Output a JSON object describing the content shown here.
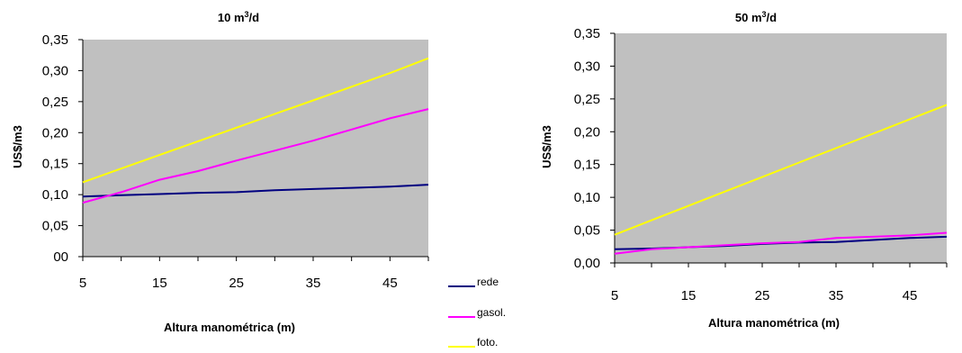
{
  "chart_data": [
    {
      "type": "line",
      "title": "10 m³/d",
      "xlabel": "Altura manométrica (m)",
      "ylabel": "US$/m3",
      "xlim": [
        5,
        50
      ],
      "ylim": [
        0,
        0.35
      ],
      "x_ticks": [
        "5",
        "15",
        "25",
        "35",
        "45"
      ],
      "y_ticks": [
        "00",
        "0,05",
        "0,10",
        "0,15",
        "0,20",
        "0,25",
        "0,30",
        "0,35"
      ],
      "x": [
        5,
        10,
        15,
        20,
        25,
        30,
        35,
        40,
        45,
        50
      ],
      "series": [
        {
          "name": "rede",
          "color": "#000080",
          "values": [
            0.097,
            0.099,
            0.101,
            0.103,
            0.104,
            0.107,
            0.109,
            0.111,
            0.113,
            0.116
          ]
        },
        {
          "name": "gasol.",
          "color": "#ff00ff",
          "values": [
            0.087,
            0.104,
            0.124,
            0.138,
            0.155,
            0.171,
            0.187,
            0.205,
            0.223,
            0.238
          ]
        },
        {
          "name": "foto.",
          "color": "#ffff00",
          "values": [
            0.12,
            0.142,
            0.164,
            0.186,
            0.208,
            0.23,
            0.252,
            0.274,
            0.296,
            0.32
          ]
        }
      ],
      "plot_background": "#c0c0c0",
      "grid": false,
      "legend": "bottom-right-outside"
    },
    {
      "type": "line",
      "title": "50 m³/d",
      "xlabel": "Altura manométrica (m)",
      "ylabel": "US$/m3",
      "xlim": [
        5,
        50
      ],
      "ylim": [
        0,
        0.35
      ],
      "x_ticks": [
        "5",
        "15",
        "25",
        "35",
        "45"
      ],
      "y_ticks": [
        "0,00",
        "0,05",
        "0,10",
        "0,15",
        "0,20",
        "0,25",
        "0,30",
        "0,35"
      ],
      "x": [
        5,
        10,
        15,
        20,
        25,
        30,
        35,
        40,
        45,
        50
      ],
      "series": [
        {
          "name": "rede",
          "color": "#000080",
          "values": [
            0.021,
            0.022,
            0.024,
            0.026,
            0.029,
            0.031,
            0.032,
            0.035,
            0.038,
            0.04
          ]
        },
        {
          "name": "gasol.",
          "color": "#ff00ff",
          "values": [
            0.014,
            0.021,
            0.024,
            0.027,
            0.03,
            0.032,
            0.038,
            0.04,
            0.042,
            0.046
          ]
        },
        {
          "name": "foto.",
          "color": "#ffff00",
          "values": [
            0.043,
            0.065,
            0.087,
            0.109,
            0.131,
            0.153,
            0.175,
            0.197,
            0.219,
            0.241
          ]
        }
      ],
      "plot_background": "#c0c0c0",
      "grid": false,
      "legend": "none"
    }
  ]
}
